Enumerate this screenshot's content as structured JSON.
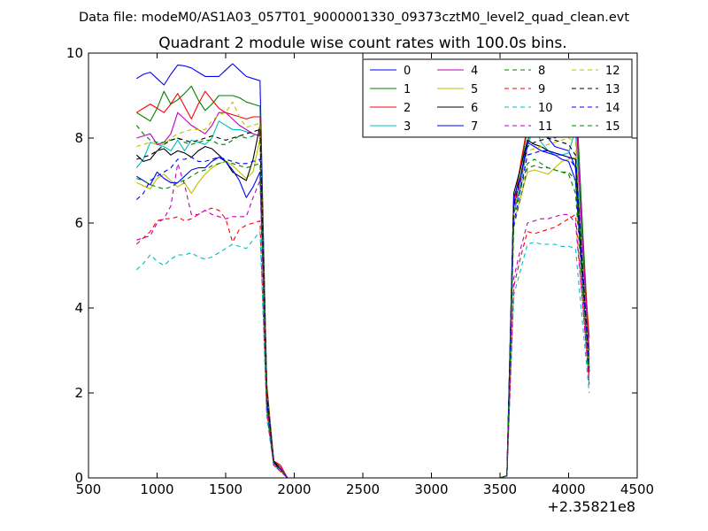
{
  "header": {
    "data_file": "Data file: modeM0/AS1A03_057T01_9000001330_09373cztM0_level2_quad_clean.evt"
  },
  "chart_data": {
    "type": "line",
    "title": "Quadrant 2 module wise count rates with 100.0s bins.",
    "xlabel": "",
    "ylabel": "",
    "x_offset_label": "+2.35821e8",
    "xlim": [
      500,
      4500
    ],
    "ylim": [
      0,
      10
    ],
    "xticks": [
      500,
      1000,
      1500,
      2000,
      2500,
      3000,
      3500,
      4000,
      4500
    ],
    "yticks": [
      0,
      2,
      4,
      6,
      8,
      10
    ],
    "grid": false,
    "legend_position": "top-right",
    "legend_columns": 4,
    "x": [
      850,
      900,
      950,
      1000,
      1050,
      1100,
      1150,
      1200,
      1250,
      1300,
      1350,
      1400,
      1450,
      1500,
      1550,
      1600,
      1650,
      1700,
      1750,
      1800,
      1850,
      1900,
      1950,
      2000,
      2500,
      3000,
      3500,
      3550,
      3600,
      3650,
      3700,
      3750,
      3800,
      3850,
      3900,
      3950,
      4000,
      4050,
      4100,
      4150
    ],
    "series": [
      {
        "name": "0",
        "color": "#0000ff",
        "dash": "solid",
        "values": [
          9.4,
          9.5,
          9.55,
          9.4,
          9.25,
          9.5,
          9.72,
          9.7,
          9.65,
          9.55,
          9.45,
          9.45,
          9.45,
          9.6,
          9.75,
          9.6,
          9.45,
          9.4,
          9.35,
          2.0,
          0.35,
          0.2,
          0,
          0,
          0,
          0,
          0,
          0.05,
          6.3,
          7.1,
          7.9,
          8.5,
          8.2,
          8.0,
          7.8,
          7.75,
          7.7,
          7.3,
          5.0,
          2.6
        ]
      },
      {
        "name": "1",
        "color": "#008000",
        "dash": "solid",
        "values": [
          8.6,
          8.5,
          8.4,
          8.7,
          9.1,
          8.8,
          8.9,
          9.05,
          9.22,
          8.9,
          8.65,
          8.8,
          9.0,
          9.0,
          9.0,
          8.95,
          8.85,
          8.8,
          8.75,
          2.2,
          0.4,
          0.25,
          0,
          0,
          0,
          0,
          0,
          0.05,
          6.5,
          7.3,
          8.2,
          8.9,
          8.7,
          8.5,
          8.3,
          8.35,
          8.4,
          9.3,
          6.0,
          3.0
        ]
      },
      {
        "name": "2",
        "color": "#ff0000",
        "dash": "solid",
        "values": [
          8.6,
          8.7,
          8.8,
          8.7,
          8.6,
          8.8,
          9.05,
          8.75,
          8.45,
          8.8,
          9.1,
          8.9,
          8.7,
          8.6,
          8.55,
          8.5,
          8.45,
          8.5,
          8.5,
          2.1,
          0.4,
          0.3,
          0,
          0,
          0,
          0,
          0,
          0.05,
          6.4,
          7.4,
          8.3,
          9.2,
          8.8,
          8.5,
          8.3,
          8.2,
          8.1,
          8.8,
          5.5,
          3.3
        ]
      },
      {
        "name": "3",
        "color": "#00bfbf",
        "dash": "solid",
        "values": [
          7.3,
          7.5,
          7.9,
          7.85,
          7.8,
          7.7,
          7.95,
          7.7,
          7.95,
          7.9,
          7.85,
          8.0,
          8.4,
          8.3,
          8.2,
          8.2,
          8.15,
          8.1,
          8.05,
          1.9,
          0.35,
          0.2,
          0,
          0,
          0,
          0,
          0,
          0.05,
          6.2,
          6.9,
          7.8,
          8.3,
          7.9,
          7.7,
          7.6,
          7.6,
          7.65,
          8.2,
          5.2,
          2.6
        ]
      },
      {
        "name": "4",
        "color": "#bf00bf",
        "dash": "solid",
        "values": [
          8.0,
          8.05,
          8.1,
          7.85,
          7.9,
          8.1,
          8.6,
          8.45,
          8.3,
          8.2,
          8.1,
          8.3,
          8.6,
          8.6,
          8.45,
          8.3,
          8.2,
          8.1,
          8.05,
          2.0,
          0.4,
          0.25,
          0,
          0,
          0,
          0,
          0,
          0.05,
          6.3,
          7.0,
          7.9,
          8.6,
          8.3,
          8.1,
          8.0,
          8.1,
          8.2,
          8.9,
          5.6,
          2.8
        ]
      },
      {
        "name": "5",
        "color": "#bfbf00",
        "dash": "solid",
        "values": [
          6.95,
          6.88,
          6.8,
          7.05,
          7.15,
          7.0,
          6.85,
          6.95,
          6.7,
          6.95,
          7.15,
          7.3,
          7.4,
          7.45,
          7.35,
          7.2,
          7.05,
          7.2,
          8.0,
          1.8,
          0.35,
          0.2,
          0,
          0,
          0,
          0,
          0,
          0.05,
          6.0,
          6.6,
          7.2,
          7.25,
          7.2,
          7.15,
          7.3,
          7.45,
          7.5,
          7.55,
          4.8,
          2.4
        ]
      },
      {
        "name": "6",
        "color": "#000000",
        "dash": "solid",
        "values": [
          7.6,
          7.45,
          7.5,
          7.7,
          7.75,
          7.6,
          7.7,
          7.65,
          7.55,
          7.7,
          7.8,
          7.75,
          7.6,
          7.45,
          7.2,
          7.1,
          7.0,
          7.5,
          8.3,
          1.9,
          0.4,
          0.2,
          0,
          0,
          0,
          0,
          0,
          0.05,
          6.7,
          7.3,
          7.95,
          7.85,
          7.8,
          7.7,
          7.65,
          7.6,
          7.55,
          7.5,
          5.0,
          2.5
        ]
      },
      {
        "name": "7",
        "color": "#0000ff",
        "dash": "solid",
        "values": [
          7.1,
          7.0,
          6.9,
          7.2,
          7.05,
          6.95,
          6.95,
          7.1,
          7.25,
          7.3,
          7.3,
          7.45,
          7.55,
          7.45,
          7.25,
          7.0,
          6.6,
          6.85,
          7.2,
          1.8,
          0.35,
          0.2,
          0,
          0,
          0,
          0,
          0,
          0.05,
          6.6,
          7.1,
          7.9,
          7.8,
          7.7,
          7.65,
          7.6,
          7.5,
          7.45,
          7.0,
          4.7,
          2.5
        ]
      },
      {
        "name": "8",
        "color": "#008000",
        "dash": "dashed",
        "values": [
          8.3,
          8.1,
          7.95,
          7.9,
          7.9,
          7.95,
          8.0,
          7.9,
          7.85,
          7.9,
          7.95,
          7.95,
          7.85,
          7.85,
          7.95,
          8.05,
          8.0,
          8.05,
          8.1,
          2.0,
          0.35,
          0.2,
          0,
          0,
          0,
          0,
          0,
          0.05,
          6.2,
          6.8,
          7.4,
          7.5,
          7.4,
          7.3,
          7.25,
          7.2,
          7.15,
          6.7,
          4.5,
          2.5
        ]
      },
      {
        "name": "9",
        "color": "#ff0000",
        "dash": "dashed",
        "values": [
          5.5,
          5.65,
          5.8,
          6.05,
          6.1,
          6.1,
          6.15,
          6.05,
          6.1,
          6.2,
          6.3,
          6.35,
          6.3,
          6.1,
          5.55,
          5.85,
          5.95,
          6.0,
          6.05,
          1.5,
          0.3,
          0.15,
          0,
          0,
          0,
          0,
          0,
          0.05,
          4.5,
          5.2,
          5.8,
          5.75,
          5.8,
          5.85,
          5.9,
          6.0,
          6.1,
          6.2,
          4.2,
          2.2
        ]
      },
      {
        "name": "10",
        "color": "#00bfbf",
        "dash": "dashed",
        "values": [
          4.9,
          5.05,
          5.25,
          5.1,
          5.0,
          5.15,
          5.25,
          5.25,
          5.3,
          5.2,
          5.15,
          5.2,
          5.3,
          5.4,
          5.5,
          5.45,
          5.4,
          5.6,
          5.8,
          1.4,
          0.3,
          0.15,
          0,
          0,
          0,
          0,
          0,
          0.05,
          4.3,
          4.9,
          5.5,
          5.55,
          5.5,
          5.5,
          5.5,
          5.45,
          5.45,
          5.4,
          3.7,
          2.0
        ]
      },
      {
        "name": "11",
        "color": "#bf00bf",
        "dash": "dashed",
        "values": [
          5.6,
          5.65,
          5.7,
          6.0,
          6.1,
          6.4,
          7.4,
          6.9,
          6.2,
          6.2,
          6.3,
          6.2,
          6.15,
          6.1,
          6.15,
          6.15,
          6.15,
          6.6,
          7.0,
          1.6,
          0.3,
          0.15,
          0,
          0,
          0,
          0,
          0,
          0.05,
          4.7,
          5.4,
          6.0,
          6.05,
          6.1,
          6.1,
          6.15,
          6.2,
          6.2,
          6.0,
          4.2,
          2.2
        ]
      },
      {
        "name": "12",
        "color": "#bfbf00",
        "dash": "dashed",
        "values": [
          7.8,
          7.85,
          7.9,
          7.85,
          7.85,
          8.0,
          8.1,
          8.15,
          8.2,
          8.2,
          8.2,
          8.4,
          8.55,
          8.6,
          8.85,
          8.5,
          8.25,
          8.3,
          8.35,
          2.0,
          0.35,
          0.2,
          0,
          0,
          0,
          0,
          0,
          0.05,
          6.3,
          7.0,
          7.7,
          7.75,
          7.8,
          7.85,
          7.9,
          7.95,
          8.0,
          7.9,
          5.1,
          2.6
        ]
      },
      {
        "name": "13",
        "color": "#000000",
        "dash": "dashed",
        "values": [
          7.5,
          7.55,
          7.6,
          7.7,
          7.85,
          7.95,
          8.0,
          7.95,
          7.9,
          7.95,
          8.0,
          8.05,
          8.0,
          7.95,
          8.0,
          8.05,
          8.1,
          8.15,
          8.2,
          2.0,
          0.35,
          0.2,
          0,
          0,
          0,
          0,
          0,
          0.05,
          6.4,
          7.1,
          7.8,
          7.9,
          7.95,
          8.0,
          7.95,
          7.9,
          7.85,
          7.6,
          5.0,
          2.6
        ]
      },
      {
        "name": "14",
        "color": "#0000ff",
        "dash": "dashed",
        "values": [
          6.55,
          6.7,
          7.0,
          7.1,
          7.2,
          7.3,
          7.5,
          7.5,
          7.55,
          7.45,
          7.45,
          7.5,
          7.55,
          7.5,
          7.45,
          7.4,
          7.4,
          7.45,
          7.5,
          1.8,
          0.35,
          0.2,
          0,
          0,
          0,
          0,
          0,
          0.05,
          6.0,
          6.8,
          7.6,
          7.65,
          7.7,
          7.7,
          7.65,
          7.6,
          7.55,
          7.3,
          4.8,
          2.5
        ]
      },
      {
        "name": "15",
        "color": "#008000",
        "dash": "dashed",
        "values": [
          7.05,
          7.0,
          6.9,
          6.85,
          6.8,
          6.85,
          6.95,
          7.0,
          7.1,
          7.2,
          7.25,
          7.35,
          7.4,
          7.45,
          7.4,
          7.35,
          7.3,
          7.35,
          7.4,
          1.7,
          0.3,
          0.2,
          0,
          0,
          0,
          0,
          0,
          0.05,
          5.9,
          6.6,
          7.3,
          7.35,
          7.3,
          7.3,
          7.25,
          7.2,
          7.2,
          7.0,
          4.6,
          2.4
        ]
      }
    ]
  }
}
